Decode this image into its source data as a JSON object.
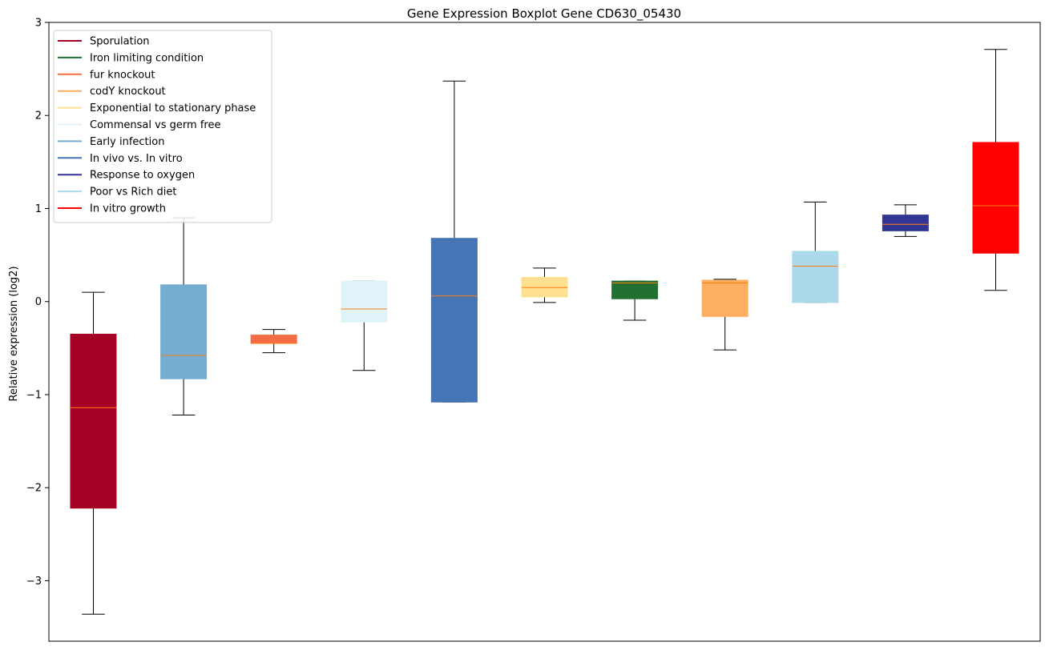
{
  "chart_data": {
    "type": "boxplot",
    "title": "Gene Expression Boxplot Gene CD630_05430",
    "xlabel": "",
    "ylabel": "Relative expression (log2)",
    "ylim": [
      -3.65,
      3.0
    ],
    "yticks": [
      -3,
      -2,
      -1,
      0,
      1,
      2,
      3
    ],
    "ytick_labels": [
      "−3",
      "−2",
      "−1",
      "0",
      "1",
      "2",
      "3"
    ],
    "legend_position": "top-left",
    "series": [
      {
        "name": "Sporulation",
        "color": "#a50026",
        "whisker_low": -3.36,
        "q1": -2.22,
        "median": -1.14,
        "q3": -0.35,
        "whisker_high": 0.1
      },
      {
        "name": "Early infection",
        "color": "#74add1",
        "whisker_low": -1.22,
        "q1": -0.83,
        "median": -0.58,
        "q3": 0.18,
        "whisker_high": 0.9
      },
      {
        "name": "fur knockout",
        "color": "#f46d43",
        "whisker_low": -0.55,
        "q1": -0.45,
        "median": -0.45,
        "q3": -0.36,
        "whisker_high": -0.3
      },
      {
        "name": "Commensal vs germ free",
        "color": "#e0f3f8",
        "whisker_low": -0.74,
        "q1": -0.22,
        "median": -0.08,
        "q3": 0.22,
        "whisker_high": 0.22
      },
      {
        "name": "In vivo vs. In vitro",
        "color": "#4575b4",
        "whisker_low": -1.08,
        "q1": -1.08,
        "median": 0.06,
        "q3": 0.68,
        "whisker_high": 2.37
      },
      {
        "name": "Exponential to stationary phase",
        "color": "#fee090",
        "whisker_low": -0.01,
        "q1": 0.05,
        "median": 0.15,
        "q3": 0.26,
        "whisker_high": 0.36
      },
      {
        "name": "Iron limiting condition",
        "color": "#1a9850",
        "box_color": "#217032",
        "whisker_low": -0.2,
        "q1": 0.03,
        "median": 0.2,
        "q3": 0.22,
        "whisker_high": 0.22
      },
      {
        "name": "codY knockout",
        "color": "#fdae61",
        "whisker_low": -0.52,
        "q1": -0.16,
        "median": 0.2,
        "q3": 0.23,
        "whisker_high": 0.24
      },
      {
        "name": "Poor vs Rich diet",
        "color": "#abd9e9",
        "whisker_low": -0.01,
        "q1": -0.01,
        "median": 0.38,
        "q3": 0.54,
        "whisker_high": 1.07
      },
      {
        "name": "Response to oxygen",
        "color": "#313695",
        "whisker_low": 0.7,
        "q1": 0.76,
        "median": 0.83,
        "q3": 0.93,
        "whisker_high": 1.04
      },
      {
        "name": "In vitro growth",
        "color": "#ff0000",
        "whisker_low": 0.12,
        "q1": 0.52,
        "median": 1.03,
        "q3": 1.71,
        "whisker_high": 2.71
      }
    ],
    "legend": [
      {
        "label": "Sporulation",
        "color": "#a50026"
      },
      {
        "label": "Iron limiting condition",
        "color": "#217032"
      },
      {
        "label": "fur knockout",
        "color": "#f46d43"
      },
      {
        "label": "codY knockout",
        "color": "#fdae61"
      },
      {
        "label": "Exponential to stationary phase",
        "color": "#fee090"
      },
      {
        "label": "Commensal vs germ free",
        "color": "#e0f3f8"
      },
      {
        "label": "Early infection",
        "color": "#74add1"
      },
      {
        "label": "In vivo vs. In vitro",
        "color": "#4575b4"
      },
      {
        "label": "Response to oxygen",
        "color": "#313695"
      },
      {
        "label": "Poor vs Rich diet",
        "color": "#abd9e9"
      },
      {
        "label": "In vitro growth",
        "color": "#ff0000"
      }
    ],
    "median_color": "#ff7f0e",
    "whisker_color": "#000000"
  }
}
